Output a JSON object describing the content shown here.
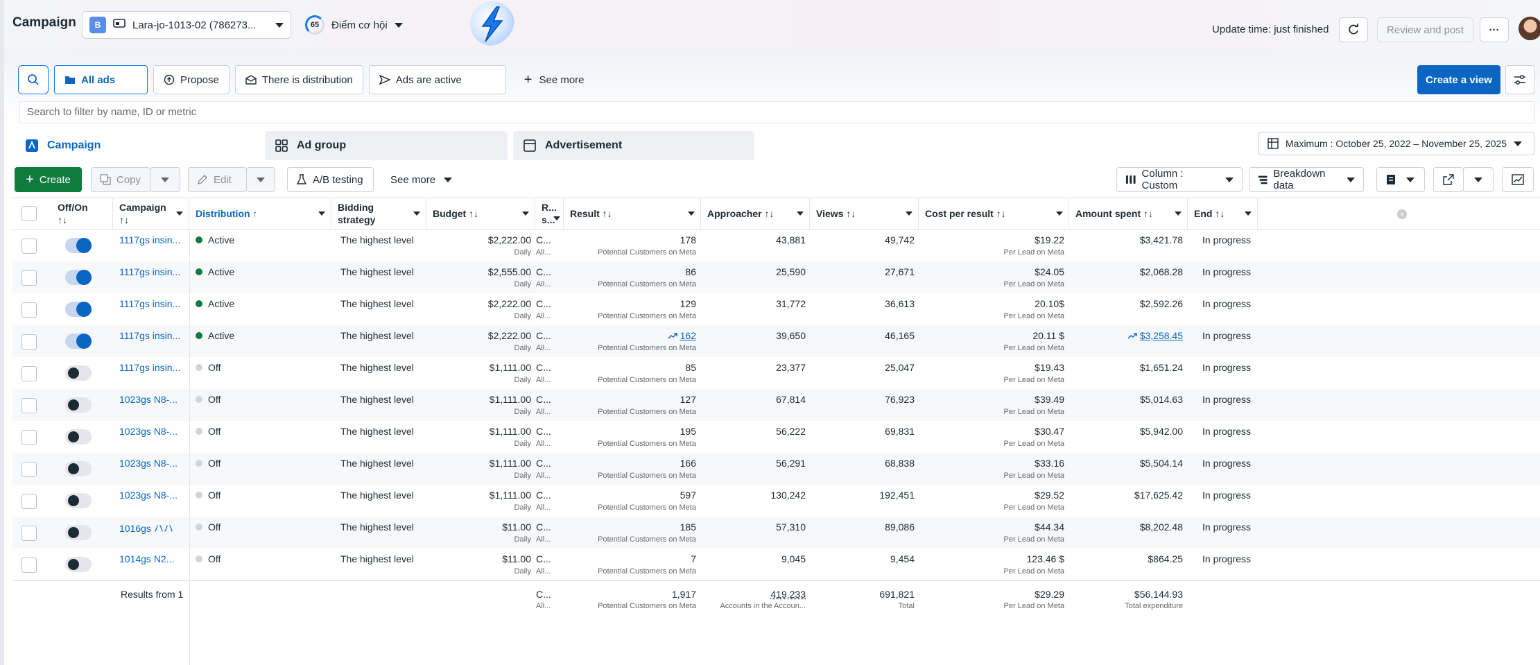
{
  "header": {
    "title": "Campaign",
    "account_badge": "B",
    "account_name": "Lara-jo-1013-02 (786273...",
    "opportunity_score": "65",
    "opportunity_label": "Điểm cơ hội",
    "update_time": "Update time: just finished",
    "review_label": "Review and post",
    "more_label": "···"
  },
  "filters": {
    "chips": [
      "All ads",
      "Propose",
      "There is distribution",
      "Ads are active"
    ],
    "see_more": "See more",
    "create_view": "Create a view",
    "search_placeholder": "Search to filter by name, ID or metric"
  },
  "tabs": {
    "campaign": "Campaign",
    "ad_group": "Ad group",
    "advertisement": "Advertisement",
    "date_range": "Maximum : October 25, 2022 – November 25, 2025"
  },
  "toolbar": {
    "create": "Create",
    "copy": "Copy",
    "edit": "Edit",
    "ab_testing": "A/B testing",
    "see_more": "See more",
    "column": "Column : Custom",
    "breakdown": "Breakdown data"
  },
  "columns": {
    "offon": "Off/On",
    "offon_sort": "↑↓",
    "campaign": "Campaign",
    "campaign_sort": "↑↓",
    "distribution": "Distribution ↑",
    "bidding": "Bidding",
    "bidding2": "strategy",
    "budget": "Budget ↑↓",
    "r": "R...",
    "r2": "s...",
    "result": "Result ↑↓",
    "approacher": "Approacher ↑↓",
    "views": "Views ↑↓",
    "cpr": "Cost per result ↑↓",
    "spent": "Amount spent ↑↓",
    "end": "End ↑↓"
  },
  "rows": [
    {
      "on": true,
      "name": "1117gs insin...",
      "status": "Active",
      "bid": "The highest level",
      "budget": "$2,222.00",
      "budget_sub": "Daily",
      "r": "C...",
      "r_sub": "All...",
      "result": "178",
      "result_sub": "Potential Customers on Meta",
      "reach": "43,881",
      "views": "49,742",
      "cpr": "$19.22",
      "cpr_sub": "Per Lead on Meta",
      "spent": "$3,421.78",
      "end": "In progress",
      "trend": false
    },
    {
      "on": true,
      "name": "1117gs insin...",
      "status": "Active",
      "bid": "The highest level",
      "budget": "$2,555.00",
      "budget_sub": "Daily",
      "r": "C...",
      "r_sub": "All...",
      "result": "86",
      "result_sub": "Potential Customers on Meta",
      "reach": "25,590",
      "views": "27,671",
      "cpr": "$24.05",
      "cpr_sub": "Per Lead on Meta",
      "spent": "$2,068.28",
      "end": "In progress",
      "trend": false
    },
    {
      "on": true,
      "name": "1117gs insin...",
      "status": "Active",
      "bid": "The highest level",
      "budget": "$2,222.00",
      "budget_sub": "Daily",
      "r": "C...",
      "r_sub": "All...",
      "result": "129",
      "result_sub": "Potential Customers on Meta",
      "reach": "31,772",
      "views": "36,613",
      "cpr": "20.10$",
      "cpr_sub": "Per Lead on Meta",
      "spent": "$2,592.26",
      "end": "In progress",
      "trend": false
    },
    {
      "on": true,
      "name": "1117gs insin...",
      "status": "Active",
      "bid": "The highest level",
      "budget": "$2,222.00",
      "budget_sub": "Daily",
      "r": "C...",
      "r_sub": "All...",
      "result": "162",
      "result_sub": "Potential Customers on Meta",
      "reach": "39,650",
      "views": "46,165",
      "cpr": "20.11 $",
      "cpr_sub": "Per Lead on Meta",
      "spent": "$3,258.45",
      "end": "In progress",
      "trend": true
    },
    {
      "on": false,
      "name": "1117gs insin...",
      "status": "Off",
      "bid": "The highest level",
      "budget": "$1,111.00",
      "budget_sub": "Daily",
      "r": "C...",
      "r_sub": "All...",
      "result": "85",
      "result_sub": "Potential Customers on Meta",
      "reach": "23,377",
      "views": "25,047",
      "cpr": "$19.43",
      "cpr_sub": "Per Lead on Meta",
      "spent": "$1,651.24",
      "end": "In progress",
      "trend": false
    },
    {
      "on": false,
      "name": "1023gs N8-...",
      "status": "Off",
      "bid": "The highest level",
      "budget": "$1,111.00",
      "budget_sub": "Daily",
      "r": "C...",
      "r_sub": "All...",
      "result": "127",
      "result_sub": "Potential Customers on Meta",
      "reach": "67,814",
      "views": "76,923",
      "cpr": "$39.49",
      "cpr_sub": "Per Lead on Meta",
      "spent": "$5,014.63",
      "end": "In progress",
      "trend": false
    },
    {
      "on": false,
      "name": "1023gs N8-...",
      "status": "Off",
      "bid": "The highest level",
      "budget": "$1,111.00",
      "budget_sub": "Daily",
      "r": "C...",
      "r_sub": "All...",
      "result": "195",
      "result_sub": "Potential Customers on Meta",
      "reach": "56,222",
      "views": "69,831",
      "cpr": "$30.47",
      "cpr_sub": "Per Lead on Meta",
      "spent": "$5,942.00",
      "end": "In progress",
      "trend": false
    },
    {
      "on": false,
      "name": "1023gs N8-...",
      "status": "Off",
      "bid": "The highest level",
      "budget": "$1,111.00",
      "budget_sub": "Daily",
      "r": "C...",
      "r_sub": "All...",
      "result": "166",
      "result_sub": "Potential Customers on Meta",
      "reach": "56,291",
      "views": "68,838",
      "cpr": "$33.16",
      "cpr_sub": "Per Lead on Meta",
      "spent": "$5,504.14",
      "end": "In progress",
      "trend": false
    },
    {
      "on": false,
      "name": "1023gs N8-...",
      "status": "Off",
      "bid": "The highest level",
      "budget": "$1,111.00",
      "budget_sub": "Daily",
      "r": "C...",
      "r_sub": "All...",
      "result": "597",
      "result_sub": "Potential Customers on Meta",
      "reach": "130,242",
      "views": "192,451",
      "cpr": "$29.52",
      "cpr_sub": "Per Lead on Meta",
      "spent": "$17,625.42",
      "end": "In progress",
      "trend": false
    },
    {
      "on": false,
      "name": "1016gs ハハ",
      "status": "Off",
      "bid": "The highest level",
      "budget": "$11.00",
      "budget_sub": "Daily",
      "r": "C...",
      "r_sub": "All...",
      "result": "185",
      "result_sub": "Potential Customers on Meta",
      "reach": "57,310",
      "views": "89,086",
      "cpr": "$44.34",
      "cpr_sub": "Per Lead on Meta",
      "spent": "$8,202.48",
      "end": "In progress",
      "trend": false
    },
    {
      "on": false,
      "name": "1014gs N2...",
      "status": "Off",
      "bid": "The highest level",
      "budget": "$11.00",
      "budget_sub": "Daily",
      "r": "C...",
      "r_sub": "All...",
      "result": "7",
      "result_sub": "Potential Customers on Meta",
      "reach": "9,045",
      "views": "9,454",
      "cpr": "123.46 $",
      "cpr_sub": "Per Lead on Meta",
      "spent": "$864.25",
      "end": "In progress",
      "trend": false
    }
  ],
  "totals": {
    "label": "Results from 1",
    "r": "C...",
    "r_sub": "All...",
    "result": "1,917",
    "result_sub": "Potential Customers on Meta",
    "reach": "419,233",
    "reach_sub": "Accounts in the Accoun...",
    "views": "691,821",
    "views_sub": "Total",
    "cpr": "$29.29",
    "cpr_sub": "Per Lead on Meta",
    "spent": "$56,144.93",
    "spent_sub": "Total expenditure"
  },
  "colors": {
    "accent": "#0a66c2",
    "create_green": "#0f7b3d",
    "active_dot": "#0f7b3d"
  }
}
